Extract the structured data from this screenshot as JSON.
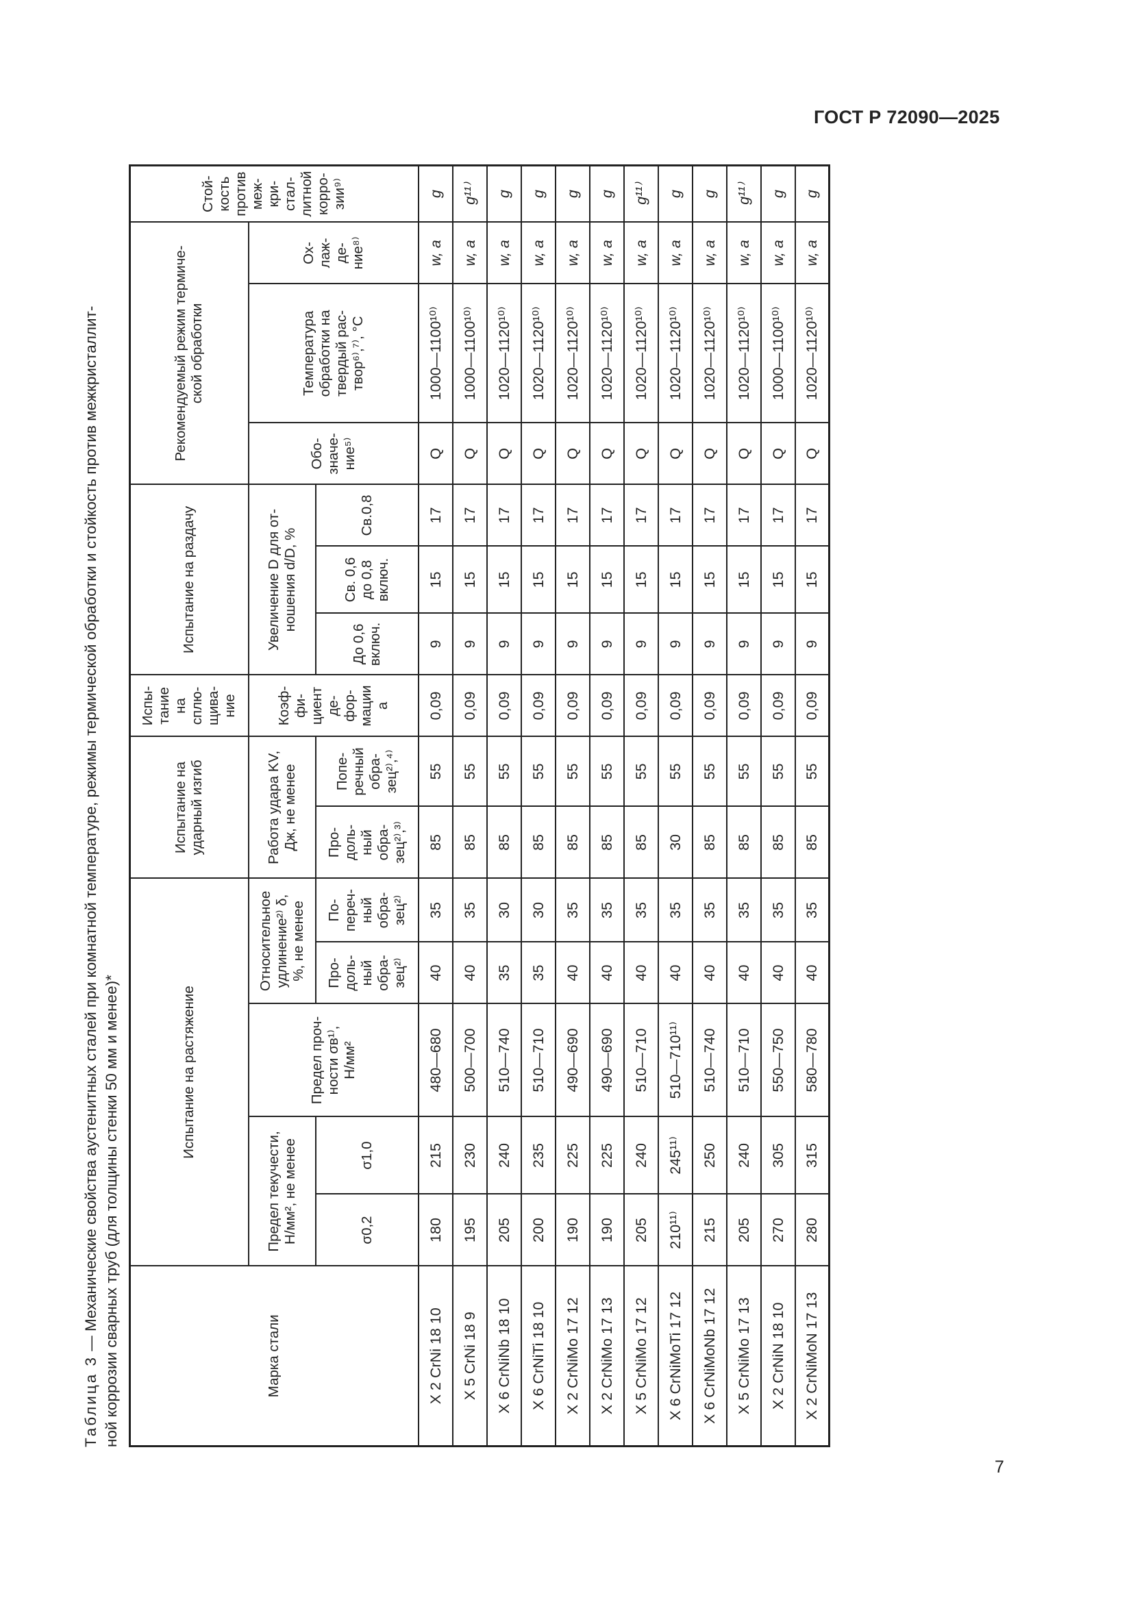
{
  "header": {
    "doc_code": "ГОСТ Р 72090—2025"
  },
  "footer": {
    "page_number": "7"
  },
  "caption": {
    "label": "Таблица 3",
    "line1_rest": " — Механические свойства аустенитных сталей при комнатной температуре, режимы термической обработки и стойкость против межкристаллит-",
    "line2": "ной коррозии сварных труб (для толщины стенки 50 мм и менее)*"
  },
  "table": {
    "headers": {
      "grade": "Марка стали",
      "tensile": "Испытание на растяжение",
      "impact": "Испытание на\nударный изгиб",
      "flattening": "Испы-\nтание\nна\nсплю-\nщива-\nние",
      "expansion": "Испытание на раздачу",
      "heat": "Рекомендуемый режим термиче-\nской обработки",
      "corrosion": "Стой-\nкость\nпротив\nмеж-\nкри-\nстал-\nлитной\nкорро-\nзии⁹⁾",
      "yield": "Предел текучести,\nН/мм², не менее",
      "strength": "Предел проч-\nности σв¹⁾,\nН/мм²",
      "elongation": "Относительное\nудлинение²⁾ δ,\n%, не менее",
      "kv": "Работа удара KV,\nДж, не менее",
      "deform": "Коэф-\nфи-\nциент\nде-\nфор-\nмации\na",
      "increase": "Увеличение D для от-\nношения d/D, %",
      "designation": "Обо-\nзначе-\nние⁵⁾",
      "temperature": "Температура\nобработки на\nтвердый рас-\nтвор⁶⁾,⁷⁾, °C",
      "cooling": "Ох-\nлаж-\nде-\nние⁸⁾",
      "s02": "σ0,2",
      "s10": "σ1,0",
      "el_long": "Про-\nдоль-\nный\nобра-\nзец²⁾",
      "el_trans": "По-\nпереч-\nный\nобра-\nзец²⁾",
      "kv_long": "Про-\nдоль-\nный\nобра-\nзец²⁾,³⁾",
      "kv_trans": "Попе-\nречный\nобра-\nзец²⁾,⁴⁾",
      "r1": "До 0,6\nвключ.",
      "r2": "Св. 0,6\nдо 0,8\nвключ.",
      "r3": "Св.0,8"
    },
    "rows": [
      [
        "X 2 CrNi 18 10",
        "180",
        "215",
        "480—680",
        "40",
        "35",
        "85",
        "55",
        "0,09",
        "9",
        "15",
        "17",
        "Q",
        "1000—1100¹⁰⁾",
        "w, a",
        "g"
      ],
      [
        "X 5 CrNi 18 9",
        "195",
        "230",
        "500—700",
        "40",
        "35",
        "85",
        "55",
        "0,09",
        "9",
        "15",
        "17",
        "Q",
        "1000—1100¹⁰⁾",
        "w, a",
        "g¹¹⁾"
      ],
      [
        "X 6 CrNiNb 18 10",
        "205",
        "240",
        "510—740",
        "35",
        "30",
        "85",
        "55",
        "0,09",
        "9",
        "15",
        "17",
        "Q",
        "1020—1120¹⁰⁾",
        "w, a",
        "g"
      ],
      [
        "X 6 CrNiTi 18 10",
        "200",
        "235",
        "510—710",
        "35",
        "30",
        "85",
        "55",
        "0,09",
        "9",
        "15",
        "17",
        "Q",
        "1020—1120¹⁰⁾",
        "w, a",
        "g"
      ],
      [
        "X 2 CrNiMo 17 12",
        "190",
        "225",
        "490—690",
        "40",
        "35",
        "85",
        "55",
        "0,09",
        "9",
        "15",
        "17",
        "Q",
        "1020—1120¹⁰⁾",
        "w, a",
        "g"
      ],
      [
        "X 2 CrNiMo 17 13",
        "190",
        "225",
        "490—690",
        "40",
        "35",
        "85",
        "55",
        "0,09",
        "9",
        "15",
        "17",
        "Q",
        "1020—1120¹⁰⁾",
        "w, a",
        "g"
      ],
      [
        "X 5 CrNiMo 17 12",
        "205",
        "240",
        "510—710",
        "40",
        "35",
        "85",
        "55",
        "0,09",
        "9",
        "15",
        "17",
        "Q",
        "1020—1120¹⁰⁾",
        "w, a",
        "g¹¹⁾"
      ],
      [
        "X 6 CrNiMoTi 17 12",
        "210¹¹⁾",
        "245¹¹⁾",
        "510—710¹¹⁾",
        "40",
        "35",
        "30",
        "55",
        "0,09",
        "9",
        "15",
        "17",
        "Q",
        "1020—1120¹⁰⁾",
        "w, a",
        "g"
      ],
      [
        "X 6 CrNiMoNb 17 12",
        "215",
        "250",
        "510—740",
        "40",
        "35",
        "85",
        "55",
        "0,09",
        "9",
        "15",
        "17",
        "Q",
        "1020—1120¹⁰⁾",
        "w, a",
        "g"
      ],
      [
        "X 5 CrNiMo 17 13",
        "205",
        "240",
        "510—710",
        "40",
        "35",
        "85",
        "55",
        "0,09",
        "9",
        "15",
        "17",
        "Q",
        "1020—1120¹⁰⁾",
        "w, a",
        "g¹¹⁾"
      ],
      [
        "X 2 CrNiN 18 10",
        "270",
        "305",
        "550—750",
        "40",
        "35",
        "85",
        "55",
        "0,09",
        "9",
        "15",
        "17",
        "Q",
        "1000—1100¹⁰⁾",
        "w, a",
        "g"
      ],
      [
        "X 2 CrNiMoN 17 13",
        "280",
        "315",
        "580—780",
        "40",
        "35",
        "85",
        "55",
        "0,09",
        "9",
        "15",
        "17",
        "Q",
        "1020—1120¹⁰⁾",
        "w, a",
        "g"
      ]
    ]
  }
}
